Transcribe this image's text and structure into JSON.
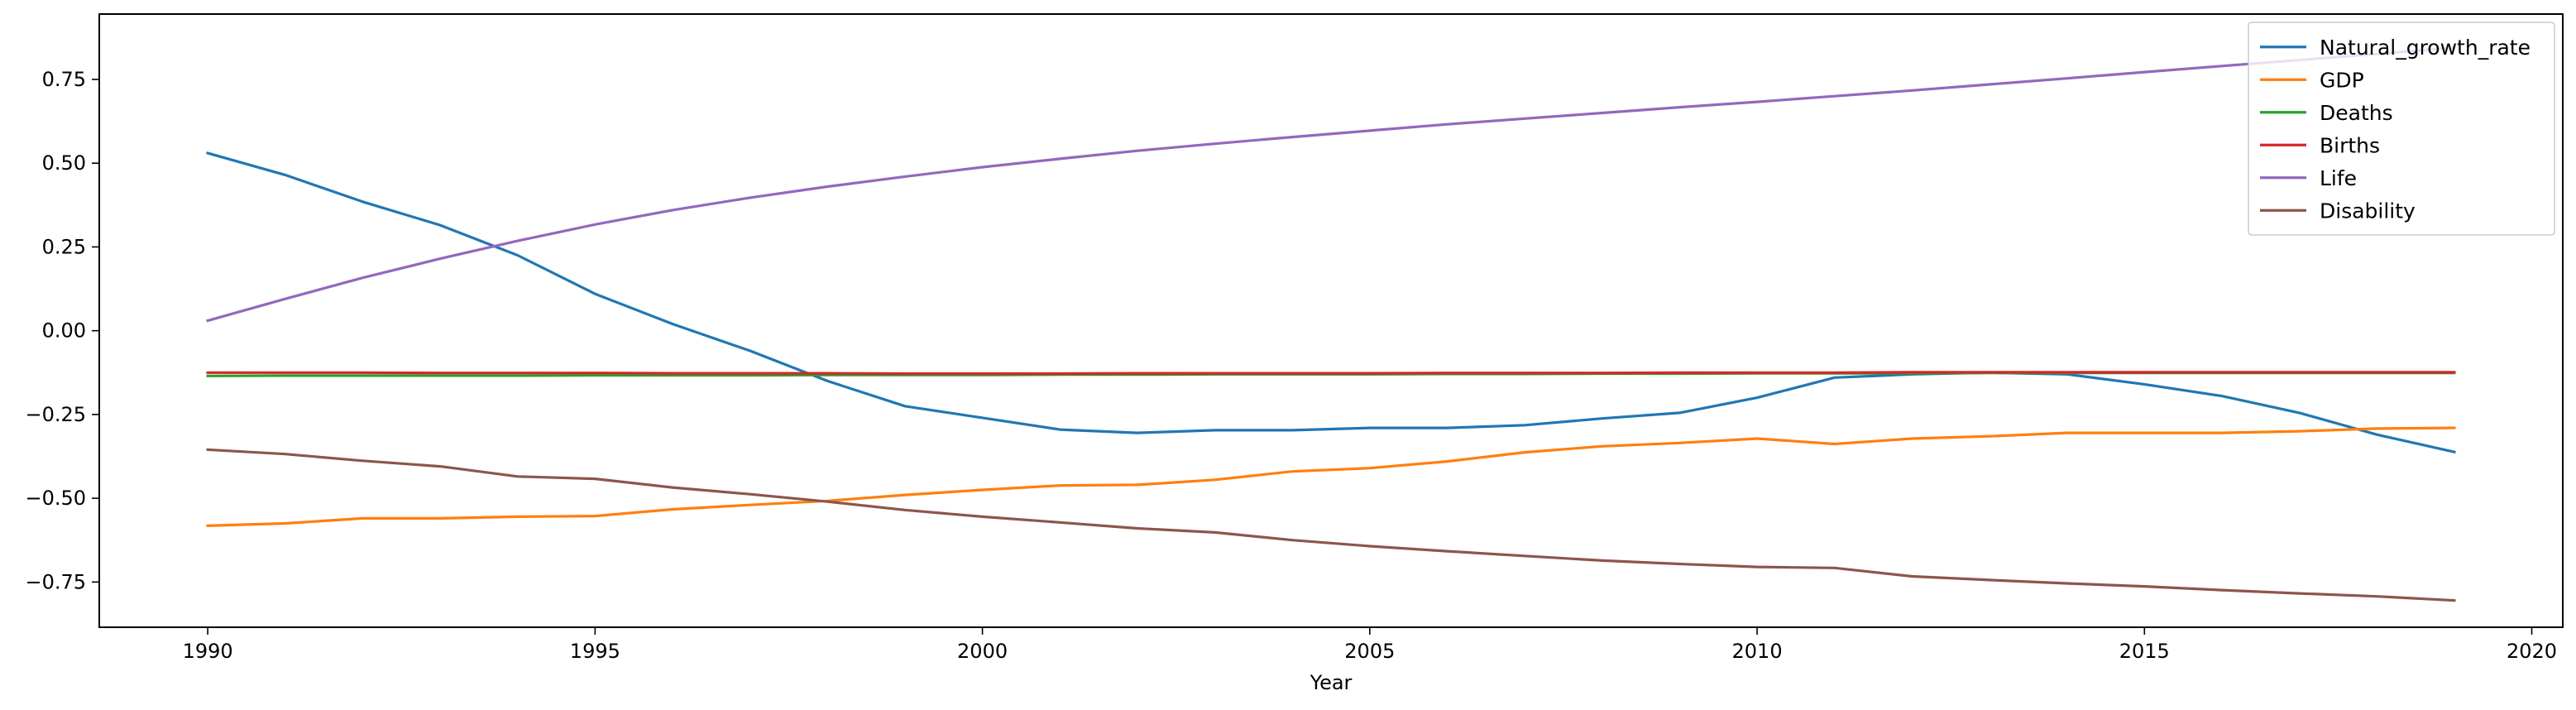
{
  "chart_data": {
    "type": "line",
    "title": "",
    "xlabel": "Year",
    "ylabel": "",
    "xlim": [
      1988.6,
      2020.4
    ],
    "ylim": [
      -0.885,
      0.945
    ],
    "x_ticks": [
      1990,
      1995,
      2000,
      2005,
      2010,
      2015,
      2020
    ],
    "x_tick_labels": [
      "1990",
      "1995",
      "2000",
      "2005",
      "2010",
      "2015",
      "2020"
    ],
    "y_ticks": [
      -0.75,
      -0.5,
      -0.25,
      0.0,
      0.25,
      0.5,
      0.75
    ],
    "y_tick_labels": [
      "−0.75",
      "−0.50",
      "−0.25",
      "0.00",
      "0.25",
      "0.50",
      "0.75"
    ],
    "grid": false,
    "legend_position": "top-right",
    "x": [
      1990,
      1991,
      1992,
      1993,
      1994,
      1995,
      1996,
      1997,
      1998,
      1999,
      2000,
      2001,
      2002,
      2003,
      2004,
      2005,
      2006,
      2007,
      2008,
      2009,
      2010,
      2011,
      2012,
      2013,
      2014,
      2015,
      2016,
      2017,
      2018,
      2019
    ],
    "series": [
      {
        "name": "Natural_growth_rate",
        "color": "#1f77b4",
        "values": [
          0.53,
          0.465,
          0.385,
          0.315,
          0.225,
          0.11,
          0.02,
          -0.06,
          -0.15,
          -0.225,
          -0.26,
          -0.295,
          -0.305,
          -0.297,
          -0.297,
          -0.29,
          -0.29,
          -0.282,
          -0.262,
          -0.245,
          -0.2,
          -0.14,
          -0.13,
          -0.125,
          -0.13,
          -0.16,
          -0.195,
          -0.245,
          -0.31,
          -0.362
        ]
      },
      {
        "name": "GDP",
        "color": "#ff7f0e",
        "values": [
          -0.582,
          -0.575,
          -0.56,
          -0.56,
          -0.555,
          -0.553,
          -0.533,
          -0.52,
          -0.508,
          -0.49,
          -0.475,
          -0.462,
          -0.46,
          -0.445,
          -0.42,
          -0.41,
          -0.39,
          -0.363,
          -0.345,
          -0.335,
          -0.322,
          -0.338,
          -0.322,
          -0.315,
          -0.305,
          -0.305,
          -0.305,
          -0.3,
          -0.292,
          -0.29
        ]
      },
      {
        "name": "Deaths",
        "color": "#2ca02c",
        "values": [
          -0.135,
          -0.134,
          -0.134,
          -0.134,
          -0.134,
          -0.133,
          -0.133,
          -0.133,
          -0.132,
          -0.132,
          -0.132,
          -0.131,
          -0.131,
          -0.13,
          -0.13,
          -0.13,
          -0.129,
          -0.129,
          -0.128,
          -0.128,
          -0.127,
          -0.127,
          -0.127,
          -0.126,
          -0.126,
          -0.126,
          -0.126,
          -0.126,
          -0.126,
          -0.126
        ]
      },
      {
        "name": "Births",
        "color": "#d62728",
        "values": [
          -0.125,
          -0.125,
          -0.125,
          -0.126,
          -0.126,
          -0.126,
          -0.127,
          -0.127,
          -0.127,
          -0.128,
          -0.128,
          -0.128,
          -0.127,
          -0.127,
          -0.127,
          -0.127,
          -0.126,
          -0.126,
          -0.126,
          -0.125,
          -0.125,
          -0.125,
          -0.124,
          -0.124,
          -0.124,
          -0.124,
          -0.124,
          -0.124,
          -0.124,
          -0.124
        ]
      },
      {
        "name": "Life",
        "color": "#9467bd",
        "values": [
          0.03,
          0.095,
          0.158,
          0.215,
          0.268,
          0.317,
          0.36,
          0.397,
          0.43,
          0.46,
          0.488,
          0.513,
          0.537,
          0.558,
          0.578,
          0.597,
          0.616,
          0.633,
          0.65,
          0.667,
          0.683,
          0.7,
          0.717,
          0.735,
          0.753,
          0.772,
          0.79,
          0.808,
          0.826,
          0.845
        ]
      },
      {
        "name": "Disability",
        "color": "#8c564b",
        "values": [
          -0.355,
          -0.368,
          -0.388,
          -0.405,
          -0.435,
          -0.442,
          -0.468,
          -0.488,
          -0.51,
          -0.535,
          -0.555,
          -0.572,
          -0.59,
          -0.602,
          -0.625,
          -0.643,
          -0.658,
          -0.672,
          -0.686,
          -0.696,
          -0.705,
          -0.708,
          -0.733,
          -0.744,
          -0.754,
          -0.763,
          -0.774,
          -0.784,
          -0.793,
          -0.805
        ]
      }
    ]
  }
}
